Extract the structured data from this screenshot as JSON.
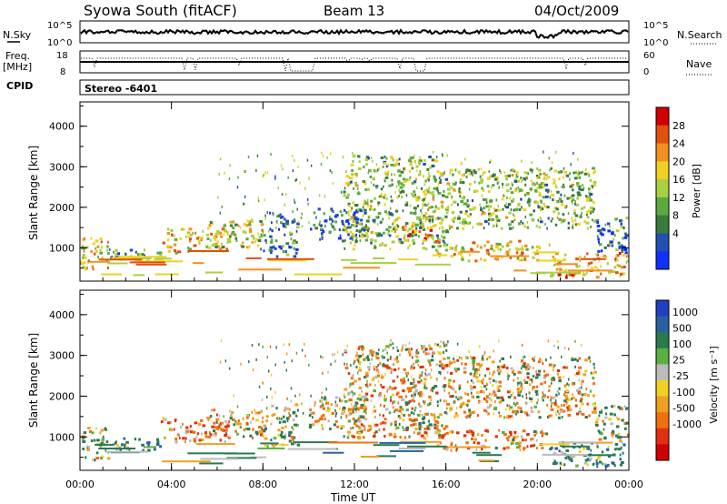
{
  "header": {
    "station": "Syowa South (fitACF)",
    "beam": "Beam 13",
    "date": "04/Oct/2009"
  },
  "strips": {
    "nsky_label": "N.Sky",
    "nsky_ticks": [
      "10^5",
      "10^0"
    ],
    "nsearch_label": "N.Search",
    "nsearch_ticks": [
      "10^5",
      "10^0"
    ],
    "freq_label_line1": "Freq.",
    "freq_label_line2": "[MHz]",
    "freq_ticks": [
      "18",
      "8"
    ],
    "nave_label": "Nave",
    "nave_ticks": [
      "60",
      "0"
    ],
    "cpid_label": "CPID",
    "cpid_value": "Stereo -6401"
  },
  "colors": {
    "power_scale": [
      "#1030ff",
      "#2050b0",
      "#3a7a3a",
      "#5aaa40",
      "#a8d040",
      "#f0d020",
      "#f09020",
      "#e05010",
      "#d00000"
    ],
    "velocity_scale": [
      "#2040c0",
      "#2a60a0",
      "#2a7a50",
      "#58b040",
      "#bbbbbb",
      "#f0d020",
      "#f0a020",
      "#f07010",
      "#e03010",
      "#d00000"
    ]
  },
  "chart_data": [
    {
      "type": "heatmap",
      "title": "",
      "xlabel": "",
      "ylabel": "Slant Range [km]",
      "x_tick_labels": [
        "00:00",
        "04:00",
        "08:00",
        "12:00",
        "16:00",
        "20:00",
        "00:00"
      ],
      "xlim_hours": [
        0,
        24
      ],
      "y_tick_labels": [
        "1000",
        "2000",
        "3000",
        "4000"
      ],
      "ylim": [
        180,
        4600
      ],
      "colorbar": {
        "label": "Power [dB]",
        "tick_labels": [
          "28",
          "24",
          "20",
          "16",
          "12",
          "8",
          "4"
        ],
        "range": [
          0,
          32
        ]
      },
      "echo_regions": [
        {
          "t0": 0.0,
          "t1": 1.2,
          "r0": 450,
          "r1": 1300,
          "value": 20
        },
        {
          "t0": 1.0,
          "t1": 3.5,
          "r0": 700,
          "r1": 1000,
          "value": 10
        },
        {
          "t0": 3.5,
          "t1": 6.5,
          "r0": 900,
          "r1": 1500,
          "value": 20
        },
        {
          "t0": 5.5,
          "t1": 8.0,
          "r0": 1000,
          "r1": 1700,
          "value": 16
        },
        {
          "t0": 8.0,
          "t1": 9.5,
          "r0": 800,
          "r1": 1900,
          "value": 8
        },
        {
          "t0": 10.0,
          "t1": 12.5,
          "r0": 1200,
          "r1": 2000,
          "value": 6
        },
        {
          "t0": 11.5,
          "t1": 16.0,
          "r0": 1000,
          "r1": 3300,
          "value": 14
        },
        {
          "t0": 14.0,
          "t1": 15.5,
          "r0": 1200,
          "r1": 1600,
          "value": 24
        },
        {
          "t0": 15.5,
          "t1": 20.5,
          "r0": 700,
          "r1": 1200,
          "value": 20
        },
        {
          "t0": 16.0,
          "t1": 22.5,
          "r0": 1500,
          "r1": 3000,
          "value": 14
        },
        {
          "t0": 20.5,
          "t1": 24.0,
          "r0": 300,
          "r1": 900,
          "value": 22
        },
        {
          "t0": 22.5,
          "t1": 24.0,
          "r0": 900,
          "r1": 1800,
          "value": 8
        }
      ]
    },
    {
      "type": "heatmap",
      "title": "",
      "xlabel": "Time UT",
      "ylabel": "Slant Range [km]",
      "x_tick_labels": [
        "00:00",
        "04:00",
        "08:00",
        "12:00",
        "16:00",
        "20:00",
        "00:00"
      ],
      "xlim_hours": [
        0,
        24
      ],
      "y_tick_labels": [
        "1000",
        "2000",
        "3000",
        "4000"
      ],
      "ylim": [
        180,
        4600
      ],
      "colorbar": {
        "label": "Velocity [m s⁻¹]",
        "tick_labels": [
          "1000",
          "500",
          "100",
          "25",
          "-25",
          "-100",
          "-500",
          "-1000"
        ],
        "range": [
          -1000,
          1000
        ]
      },
      "echo_regions": [
        {
          "t0": 0.0,
          "t1": 1.2,
          "r0": 450,
          "r1": 1300,
          "value": 50
        },
        {
          "t0": 1.0,
          "t1": 3.5,
          "r0": 700,
          "r1": 1000,
          "value": 200
        },
        {
          "t0": 3.5,
          "t1": 6.5,
          "r0": 900,
          "r1": 1500,
          "value": -200
        },
        {
          "t0": 5.5,
          "t1": 8.0,
          "r0": 1000,
          "r1": 1700,
          "value": -150
        },
        {
          "t0": 8.0,
          "t1": 9.5,
          "r0": 800,
          "r1": 1900,
          "value": 60
        },
        {
          "t0": 10.0,
          "t1": 12.5,
          "r0": 1200,
          "r1": 2000,
          "value": -50
        },
        {
          "t0": 11.5,
          "t1": 16.0,
          "r0": 1000,
          "r1": 3300,
          "value": -120
        },
        {
          "t0": 14.0,
          "t1": 15.5,
          "r0": 1200,
          "r1": 1600,
          "value": 80
        },
        {
          "t0": 15.5,
          "t1": 20.5,
          "r0": 700,
          "r1": 1200,
          "value": -180
        },
        {
          "t0": 16.0,
          "t1": 22.5,
          "r0": 1500,
          "r1": 3000,
          "value": -80
        },
        {
          "t0": 20.5,
          "t1": 24.0,
          "r0": 300,
          "r1": 900,
          "value": 200
        },
        {
          "t0": 22.5,
          "t1": 24.0,
          "r0": 900,
          "r1": 1800,
          "value": 60
        }
      ]
    }
  ]
}
